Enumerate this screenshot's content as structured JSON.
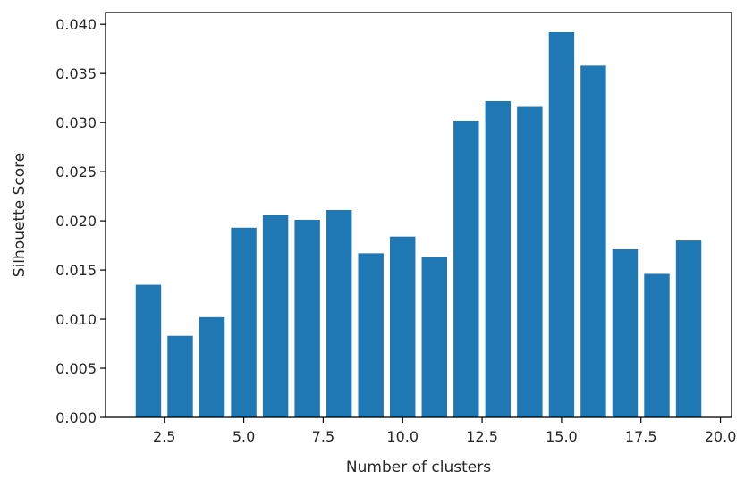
{
  "chart_data": {
    "type": "bar",
    "title": "",
    "xlabel": "Number of clusters",
    "ylabel": "Silhouette Score",
    "x": [
      2,
      3,
      4,
      5,
      6,
      7,
      8,
      9,
      10,
      11,
      12,
      13,
      14,
      15,
      16,
      17,
      18,
      19
    ],
    "values": [
      0.0135,
      0.0083,
      0.0102,
      0.0193,
      0.0206,
      0.0201,
      0.0211,
      0.0167,
      0.0184,
      0.0163,
      0.0302,
      0.0322,
      0.0316,
      0.0392,
      0.0358,
      0.0171,
      0.0146,
      0.018
    ],
    "xlim": [
      0.65,
      20.35
    ],
    "ylim": [
      0,
      0.0412
    ],
    "xticks": [
      2.5,
      5.0,
      7.5,
      10.0,
      12.5,
      15.0,
      17.5,
      20.0
    ],
    "xtick_labels": [
      "2.5",
      "5.0",
      "7.5",
      "10.0",
      "12.5",
      "15.0",
      "17.5",
      "20.0"
    ],
    "yticks": [
      0,
      0.005,
      0.01,
      0.015,
      0.02,
      0.025,
      0.03,
      0.035,
      0.04
    ],
    "ytick_labels": [
      "0.000",
      "0.005",
      "0.010",
      "0.015",
      "0.020",
      "0.025",
      "0.030",
      "0.035",
      "0.040"
    ],
    "bar_width": 0.8,
    "bar_color": "#1f77b4",
    "grid": false,
    "legend": "none"
  }
}
